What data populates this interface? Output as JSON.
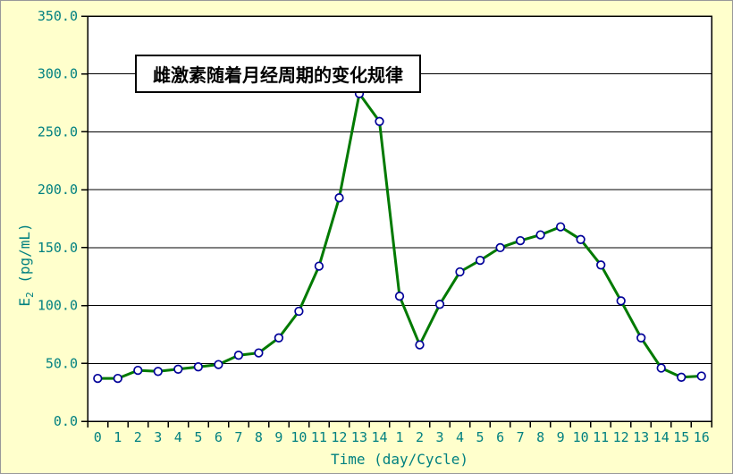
{
  "chart": {
    "title": "雌激素随着月经周期的变化规律",
    "xlabel": "Time (day/Cycle)",
    "ylabel_parts": {
      "base": "E",
      "sub": "2",
      "unit": " (pg/mL)"
    }
  },
  "chart_data": {
    "type": "line",
    "title": "雌激素随着月经周期的变化规律",
    "xlabel": "Time (day/Cycle)",
    "ylabel": "E2 (pg/mL)",
    "categories": [
      "0",
      "1",
      "2",
      "3",
      "4",
      "5",
      "6",
      "7",
      "8",
      "9",
      "10",
      "11",
      "12",
      "13",
      "14",
      "1",
      "2",
      "3",
      "4",
      "5",
      "6",
      "7",
      "8",
      "9",
      "10",
      "11",
      "12",
      "13",
      "14",
      "15",
      "16"
    ],
    "values": [
      37,
      37,
      44,
      43,
      45,
      47,
      49,
      57,
      59,
      72,
      95,
      134,
      193,
      283,
      259,
      108,
      66,
      101,
      129,
      139,
      150,
      156,
      161,
      168,
      157,
      135,
      104,
      72,
      46,
      38,
      39
    ],
    "ylim": [
      0,
      350
    ],
    "ytick_step": 50,
    "ytick_labels": [
      "0.0",
      "50.0",
      "100.0",
      "150.0",
      "200.0",
      "250.0",
      "300.0",
      "350.0"
    ],
    "grid": true,
    "legend": "none",
    "colors": {
      "background": "#ffffcc",
      "plot_bg": "#ffffff",
      "grid": "#000000",
      "axis": "#000000",
      "line": "#007a00",
      "marker_fill": "#ffffff",
      "marker_stroke": "#000099",
      "tick_label": "#008080",
      "title_text": "#000000"
    }
  }
}
